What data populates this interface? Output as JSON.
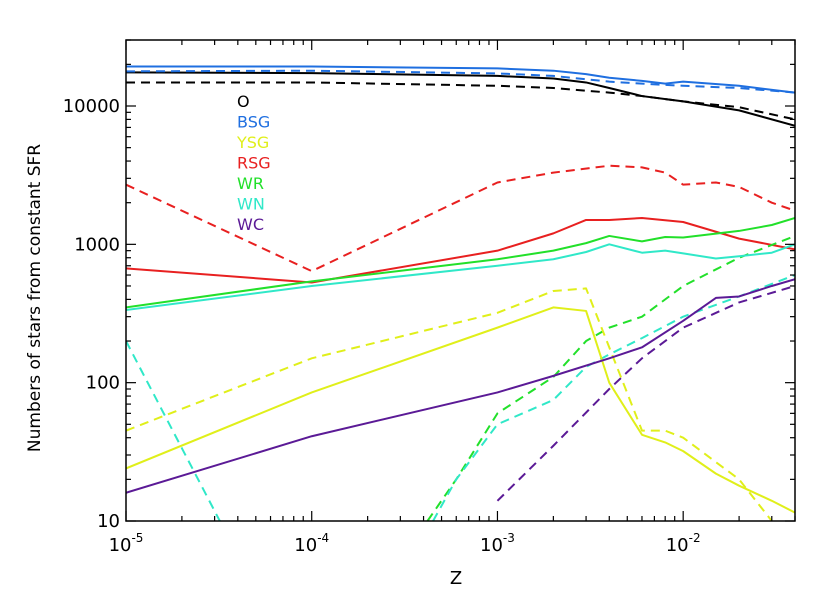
{
  "chart_data": {
    "type": "line",
    "xlabel": "Z",
    "ylabel": "Numbers of stars from constant SFR",
    "x_scale": "log",
    "y_scale": "log",
    "xlim": [
      1e-05,
      0.04
    ],
    "ylim": [
      10,
      30000
    ],
    "x_ticks": [
      {
        "value": 1e-05,
        "base": "10",
        "exp": "-5"
      },
      {
        "value": 0.0001,
        "base": "10",
        "exp": "-4"
      },
      {
        "value": 0.001,
        "base": "10",
        "exp": "-3"
      },
      {
        "value": 0.01,
        "base": "10",
        "exp": "-2"
      }
    ],
    "y_ticks": [
      {
        "value": 10,
        "label": "10"
      },
      {
        "value": 100,
        "label": "100"
      },
      {
        "value": 1000,
        "label": "1000"
      },
      {
        "value": 10000,
        "label": "10000"
      }
    ],
    "legend": {
      "placement": "top-left",
      "entries": [
        {
          "label": "O",
          "color": "#000000"
        },
        {
          "label": "BSG",
          "color": "#1f6fe0"
        },
        {
          "label": "YSG",
          "color": "#e0ef1a"
        },
        {
          "label": "RSG",
          "color": "#e82020"
        },
        {
          "label": "WR",
          "color": "#22e02a"
        },
        {
          "label": "WN",
          "color": "#30e8c8"
        },
        {
          "label": "WC",
          "color": "#5b1a96"
        }
      ]
    },
    "series": [
      {
        "name": "O",
        "style": "solid",
        "color": "#000000",
        "points": [
          [
            1e-05,
            17500
          ],
          [
            0.0001,
            17300
          ],
          [
            0.001,
            16500
          ],
          [
            0.002,
            15800
          ],
          [
            0.003,
            14800
          ],
          [
            0.004,
            13500
          ],
          [
            0.006,
            11800
          ],
          [
            0.01,
            10800
          ],
          [
            0.02,
            9300
          ],
          [
            0.04,
            7200
          ]
        ]
      },
      {
        "name": "O",
        "style": "dashed",
        "color": "#000000",
        "points": [
          [
            1e-05,
            14800
          ],
          [
            0.0001,
            14800
          ],
          [
            0.001,
            14000
          ],
          [
            0.002,
            13500
          ],
          [
            0.004,
            12500
          ],
          [
            0.006,
            11800
          ],
          [
            0.01,
            10800
          ],
          [
            0.02,
            9800
          ],
          [
            0.04,
            8000
          ]
        ]
      },
      {
        "name": "BSG",
        "style": "solid",
        "color": "#1f6fe0",
        "points": [
          [
            1e-05,
            19300
          ],
          [
            0.0001,
            19300
          ],
          [
            0.001,
            18700
          ],
          [
            0.002,
            18000
          ],
          [
            0.003,
            17000
          ],
          [
            0.004,
            16000
          ],
          [
            0.006,
            15200
          ],
          [
            0.008,
            14500
          ],
          [
            0.01,
            15000
          ],
          [
            0.02,
            14000
          ],
          [
            0.04,
            12500
          ]
        ]
      },
      {
        "name": "BSG",
        "style": "dashed",
        "color": "#1f6fe0",
        "points": [
          [
            1e-05,
            17800
          ],
          [
            0.0001,
            18000
          ],
          [
            0.001,
            17200
          ],
          [
            0.002,
            16500
          ],
          [
            0.004,
            15000
          ],
          [
            0.006,
            14500
          ],
          [
            0.01,
            14000
          ],
          [
            0.02,
            13500
          ],
          [
            0.04,
            12500
          ]
        ]
      },
      {
        "name": "RSG",
        "style": "solid",
        "color": "#e82020",
        "points": [
          [
            1e-05,
            670
          ],
          [
            0.0001,
            530
          ],
          [
            0.001,
            900
          ],
          [
            0.002,
            1200
          ],
          [
            0.003,
            1500
          ],
          [
            0.004,
            1500
          ],
          [
            0.006,
            1550
          ],
          [
            0.01,
            1450
          ],
          [
            0.02,
            1100
          ],
          [
            0.04,
            920
          ]
        ]
      },
      {
        "name": "RSG",
        "style": "dashed",
        "color": "#e82020",
        "points": [
          [
            1e-05,
            2700
          ],
          [
            0.0001,
            640
          ],
          [
            0.001,
            2800
          ],
          [
            0.002,
            3300
          ],
          [
            0.004,
            3700
          ],
          [
            0.006,
            3600
          ],
          [
            0.008,
            3300
          ],
          [
            0.01,
            2700
          ],
          [
            0.015,
            2800
          ],
          [
            0.02,
            2600
          ],
          [
            0.03,
            2000
          ],
          [
            0.04,
            1750
          ]
        ]
      },
      {
        "name": "WR",
        "style": "solid",
        "color": "#22e02a",
        "points": [
          [
            1e-05,
            350
          ],
          [
            0.0001,
            540
          ],
          [
            0.001,
            780
          ],
          [
            0.002,
            900
          ],
          [
            0.003,
            1020
          ],
          [
            0.004,
            1150
          ],
          [
            0.006,
            1050
          ],
          [
            0.008,
            1130
          ],
          [
            0.01,
            1120
          ],
          [
            0.02,
            1250
          ],
          [
            0.03,
            1380
          ],
          [
            0.04,
            1550
          ]
        ]
      },
      {
        "name": "WR",
        "style": "dashed",
        "color": "#22e02a",
        "points": [
          [
            0.00042,
            10
          ],
          [
            0.0006,
            20
          ],
          [
            0.001,
            60
          ],
          [
            0.002,
            110
          ],
          [
            0.003,
            200
          ],
          [
            0.004,
            250
          ],
          [
            0.006,
            300
          ],
          [
            0.01,
            500
          ],
          [
            0.02,
            800
          ],
          [
            0.04,
            1150
          ]
        ]
      },
      {
        "name": "WN",
        "style": "solid",
        "color": "#30e8c8",
        "points": [
          [
            1e-05,
            335
          ],
          [
            0.0001,
            500
          ],
          [
            0.001,
            700
          ],
          [
            0.002,
            780
          ],
          [
            0.003,
            880
          ],
          [
            0.004,
            1000
          ],
          [
            0.006,
            870
          ],
          [
            0.008,
            900
          ],
          [
            0.01,
            860
          ],
          [
            0.015,
            790
          ],
          [
            0.02,
            820
          ],
          [
            0.03,
            870
          ],
          [
            0.04,
            1000
          ]
        ]
      },
      {
        "name": "WN",
        "style": "dashed",
        "color": "#30e8c8",
        "points": [
          [
            1e-05,
            200
          ],
          [
            3.2e-05,
            10
          ]
        ]
      },
      {
        "name": "WN",
        "style": "dashed",
        "color": "#30e8c8",
        "points": [
          [
            0.00045,
            10
          ],
          [
            0.0006,
            20
          ],
          [
            0.001,
            50
          ],
          [
            0.002,
            75
          ],
          [
            0.003,
            130
          ],
          [
            0.004,
            160
          ],
          [
            0.006,
            210
          ],
          [
            0.01,
            300
          ],
          [
            0.02,
            420
          ],
          [
            0.04,
            600
          ]
        ]
      },
      {
        "name": "YSG",
        "style": "solid",
        "color": "#e0ef1a",
        "points": [
          [
            1e-05,
            24
          ],
          [
            0.0001,
            85
          ],
          [
            0.001,
            250
          ],
          [
            0.002,
            350
          ],
          [
            0.003,
            330
          ],
          [
            0.004,
            100
          ],
          [
            0.006,
            42
          ],
          [
            0.008,
            37
          ],
          [
            0.01,
            32
          ],
          [
            0.015,
            22
          ],
          [
            0.02,
            18
          ],
          [
            0.03,
            14
          ],
          [
            0.04,
            11.5
          ]
        ]
      },
      {
        "name": "YSG",
        "style": "dashed",
        "color": "#e0ef1a",
        "points": [
          [
            1e-05,
            45
          ],
          [
            0.0001,
            150
          ],
          [
            0.001,
            320
          ],
          [
            0.002,
            460
          ],
          [
            0.003,
            480
          ],
          [
            0.004,
            180
          ],
          [
            0.006,
            45
          ],
          [
            0.008,
            45
          ],
          [
            0.01,
            40
          ],
          [
            0.02,
            20
          ],
          [
            0.03,
            10
          ]
        ]
      },
      {
        "name": "WC",
        "style": "solid",
        "color": "#5b1a96",
        "points": [
          [
            1e-05,
            16
          ],
          [
            0.0001,
            41
          ],
          [
            0.001,
            85
          ],
          [
            0.002,
            112
          ],
          [
            0.004,
            150
          ],
          [
            0.006,
            180
          ],
          [
            0.01,
            280
          ],
          [
            0.015,
            410
          ],
          [
            0.02,
            420
          ],
          [
            0.03,
            500
          ],
          [
            0.04,
            560
          ]
        ]
      },
      {
        "name": "WC",
        "style": "dashed",
        "color": "#5b1a96",
        "points": [
          [
            0.001,
            14
          ],
          [
            0.002,
            35
          ],
          [
            0.004,
            90
          ],
          [
            0.006,
            150
          ],
          [
            0.01,
            250
          ],
          [
            0.02,
            380
          ],
          [
            0.04,
            500
          ]
        ]
      }
    ]
  }
}
